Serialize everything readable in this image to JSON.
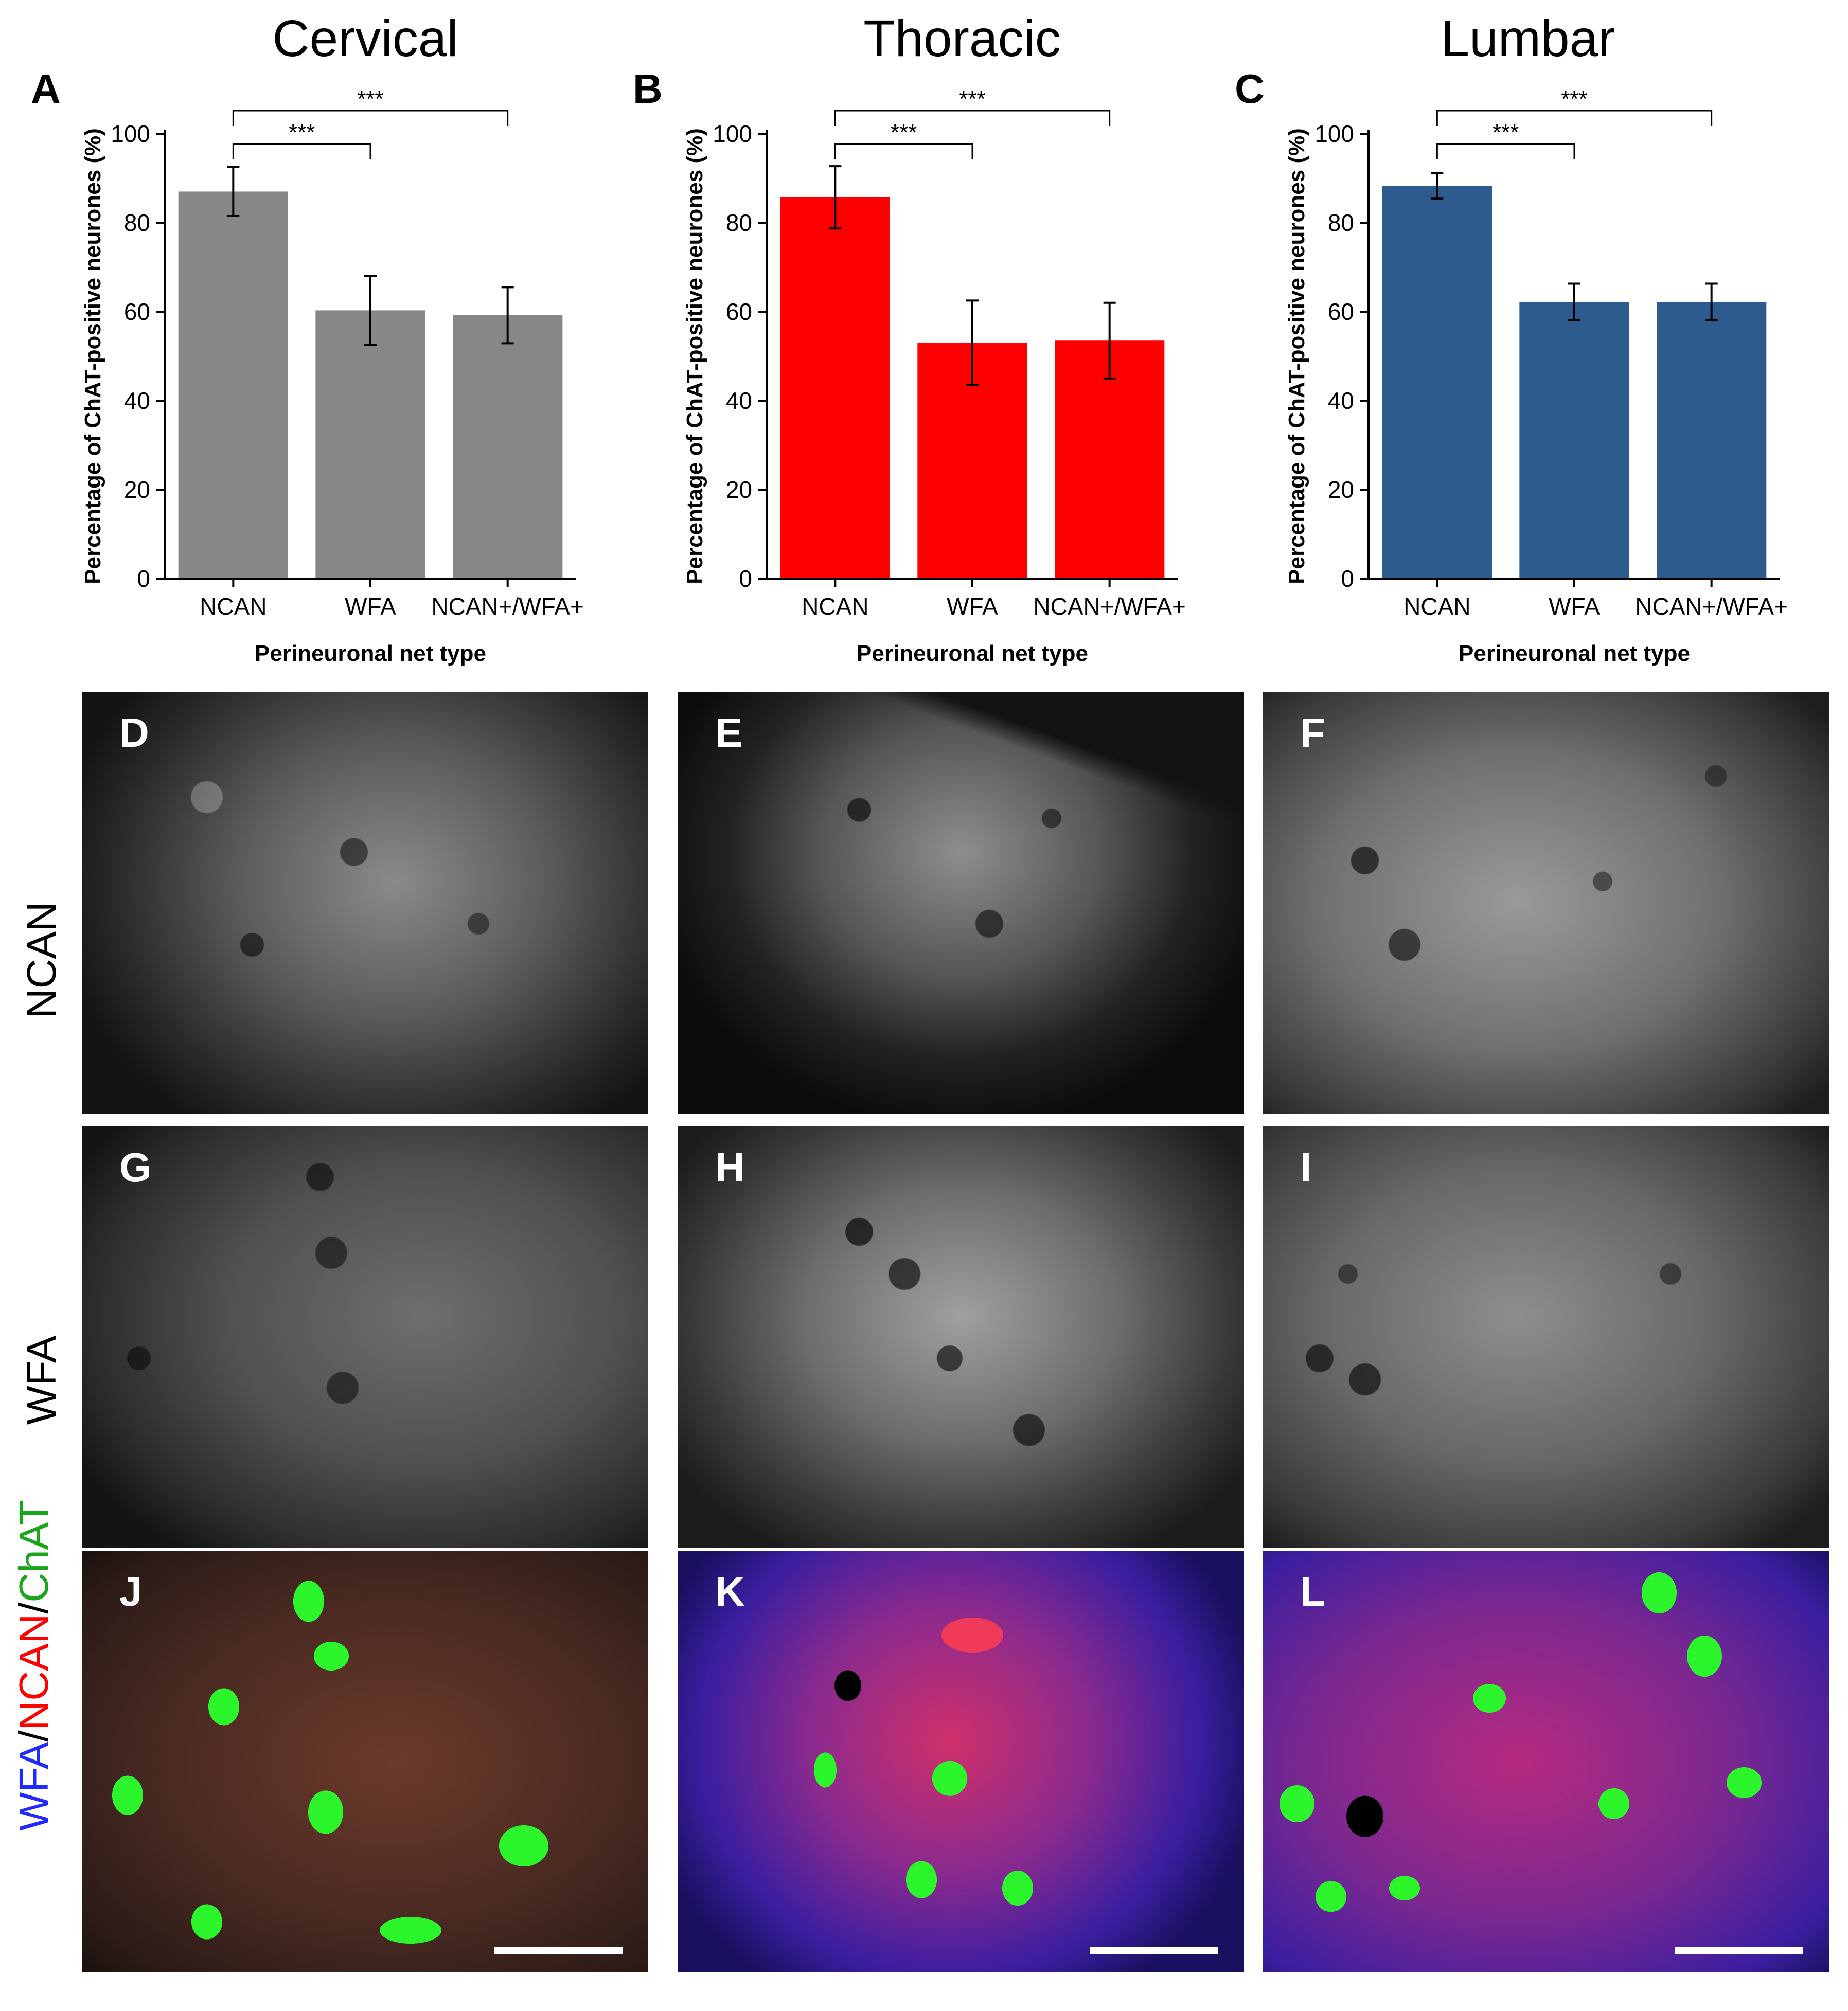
{
  "columns": [
    {
      "title": "Cervical"
    },
    {
      "title": "Thoracic"
    },
    {
      "title": "Lumbar"
    }
  ],
  "chart_data": [
    {
      "type": "bar",
      "panel_label": "A",
      "categories": [
        "NCAN",
        "WFA",
        "NCAN+/WFA+"
      ],
      "values": [
        87,
        60.3,
        59.2
      ],
      "errors": [
        5.5,
        7.7,
        6.3
      ],
      "ylim": [
        0,
        100
      ],
      "yticks": [
        "0",
        "20",
        "40",
        "60",
        "80",
        "100"
      ],
      "ylabel": "Percentage of ChAT-positive neurones (%)",
      "xlabel": "Perineuronal net type",
      "bar_color": "#878787",
      "significance": [
        {
          "from": 0,
          "to": 1,
          "label": "***"
        },
        {
          "from": 0,
          "to": 2,
          "label": "***"
        }
      ]
    },
    {
      "type": "bar",
      "panel_label": "B",
      "categories": [
        "NCAN",
        "WFA",
        "NCAN+/WFA+"
      ],
      "values": [
        85.7,
        53,
        53.5
      ],
      "errors": [
        7,
        9.5,
        8.5
      ],
      "ylim": [
        0,
        100
      ],
      "yticks": [
        "0",
        "20",
        "40",
        "60",
        "80",
        "100"
      ],
      "ylabel": "Percentage of ChAT-positive neurones (%)",
      "xlabel": "Perineuronal net type",
      "bar_color": "#ff0000",
      "significance": [
        {
          "from": 0,
          "to": 1,
          "label": "***"
        },
        {
          "from": 0,
          "to": 2,
          "label": "***"
        }
      ]
    },
    {
      "type": "bar",
      "panel_label": "C",
      "categories": [
        "NCAN",
        "WFA",
        "NCAN+/WFA+"
      ],
      "values": [
        88.3,
        62.2,
        62.2
      ],
      "errors": [
        2.9,
        4.1,
        4.1
      ],
      "ylim": [
        0,
        100
      ],
      "yticks": [
        "0",
        "20",
        "40",
        "60",
        "80",
        "100"
      ],
      "ylabel": "Percentage of ChAT-positive neurones (%)",
      "xlabel": "Perineuronal net type",
      "bar_color": "#2d5b8e",
      "significance": [
        {
          "from": 0,
          "to": 1,
          "label": "***"
        },
        {
          "from": 0,
          "to": 2,
          "label": "***"
        }
      ]
    }
  ],
  "rows": [
    {
      "label": "NCAN",
      "panels": [
        "D",
        "E",
        "F"
      ]
    },
    {
      "label": "WFA",
      "panels": [
        "G",
        "H",
        "I"
      ]
    },
    {
      "label_parts": [
        "WFA",
        "/",
        "NCAN",
        "/",
        "ChAT"
      ],
      "label_colors": [
        "#1f2bff",
        "#000000",
        "#ff0000",
        "#000000",
        "#1aa51a"
      ],
      "panels": [
        "J",
        "K",
        "L"
      ]
    }
  ],
  "colors": {
    "grey_bar": "#878787",
    "red_bar": "#ff0000",
    "blue_bar": "#2d5b8e",
    "blue_channel": "#3a2ad0",
    "red_channel": "#e8284a",
    "green_channel": "#22e622"
  }
}
